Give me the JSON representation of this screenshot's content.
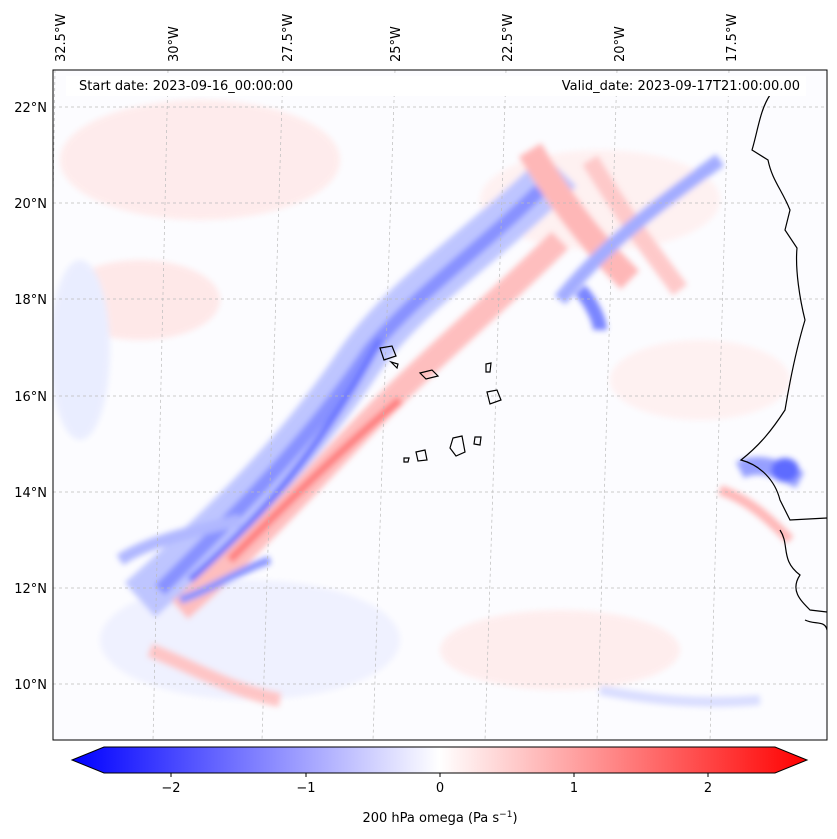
{
  "map": {
    "start_date": "Start date: 2023-09-16_00:00:00",
    "valid_date": "Valid_date: 2023-09-17T21:00:00.00",
    "colors": {
      "neg": "#0000ff",
      "mid": "#ffffff",
      "pos": "#ff0000",
      "coast": "#000000",
      "grid": "#bbbbbb"
    },
    "lon_labels": [
      "32.5°W",
      "30°W",
      "27.5°W",
      "25°W",
      "22.5°W",
      "20°W",
      "17.5°W"
    ],
    "lat_labels": [
      "22°N",
      "20°N",
      "18°N",
      "16°N",
      "14°N",
      "12°N",
      "10°N"
    ],
    "colorbar": {
      "label_main": "200 hPa omega (Pa s",
      "label_exp": "−1",
      "label_close": ")",
      "ticks": [
        "−2",
        "−1",
        "0",
        "1",
        "2"
      ],
      "range": [
        -2.5,
        2.5
      ],
      "extend": "both"
    }
  }
}
